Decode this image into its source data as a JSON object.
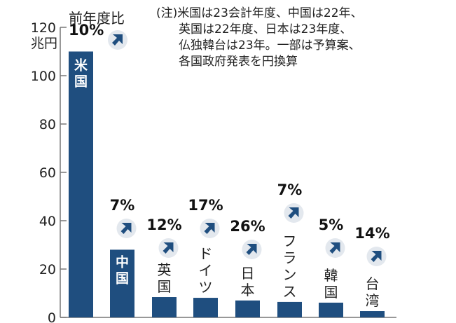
{
  "chart_data": {
    "type": "bar",
    "ylabel": "兆円",
    "legend_title": "前年度比",
    "ylim": [
      0,
      120
    ],
    "yticks": [
      0,
      20,
      40,
      60,
      80,
      100,
      120
    ],
    "categories": [
      "米国",
      "中国",
      "英国",
      "ドイツ",
      "日本",
      "フランス",
      "韓国",
      "台湾"
    ],
    "values": [
      110,
      28,
      8.4,
      8.1,
      7.0,
      6.4,
      6.1,
      2.6
    ],
    "yoy_change": [
      "10%",
      "7%",
      "12%",
      "17%",
      "26%",
      "7%",
      "5%",
      "14%"
    ],
    "yoy_direction": "up",
    "note": [
      "(注)米国は23会計年度、中国は22年、",
      "英国は22年度、日本は23年度、",
      "仏独韓台は23年。一部は予算案、",
      "各国政府発表を円換算"
    ],
    "grid": false,
    "colors": {
      "bar": "#1f4e7f",
      "arrow_bg": "#e3e8ee"
    }
  }
}
